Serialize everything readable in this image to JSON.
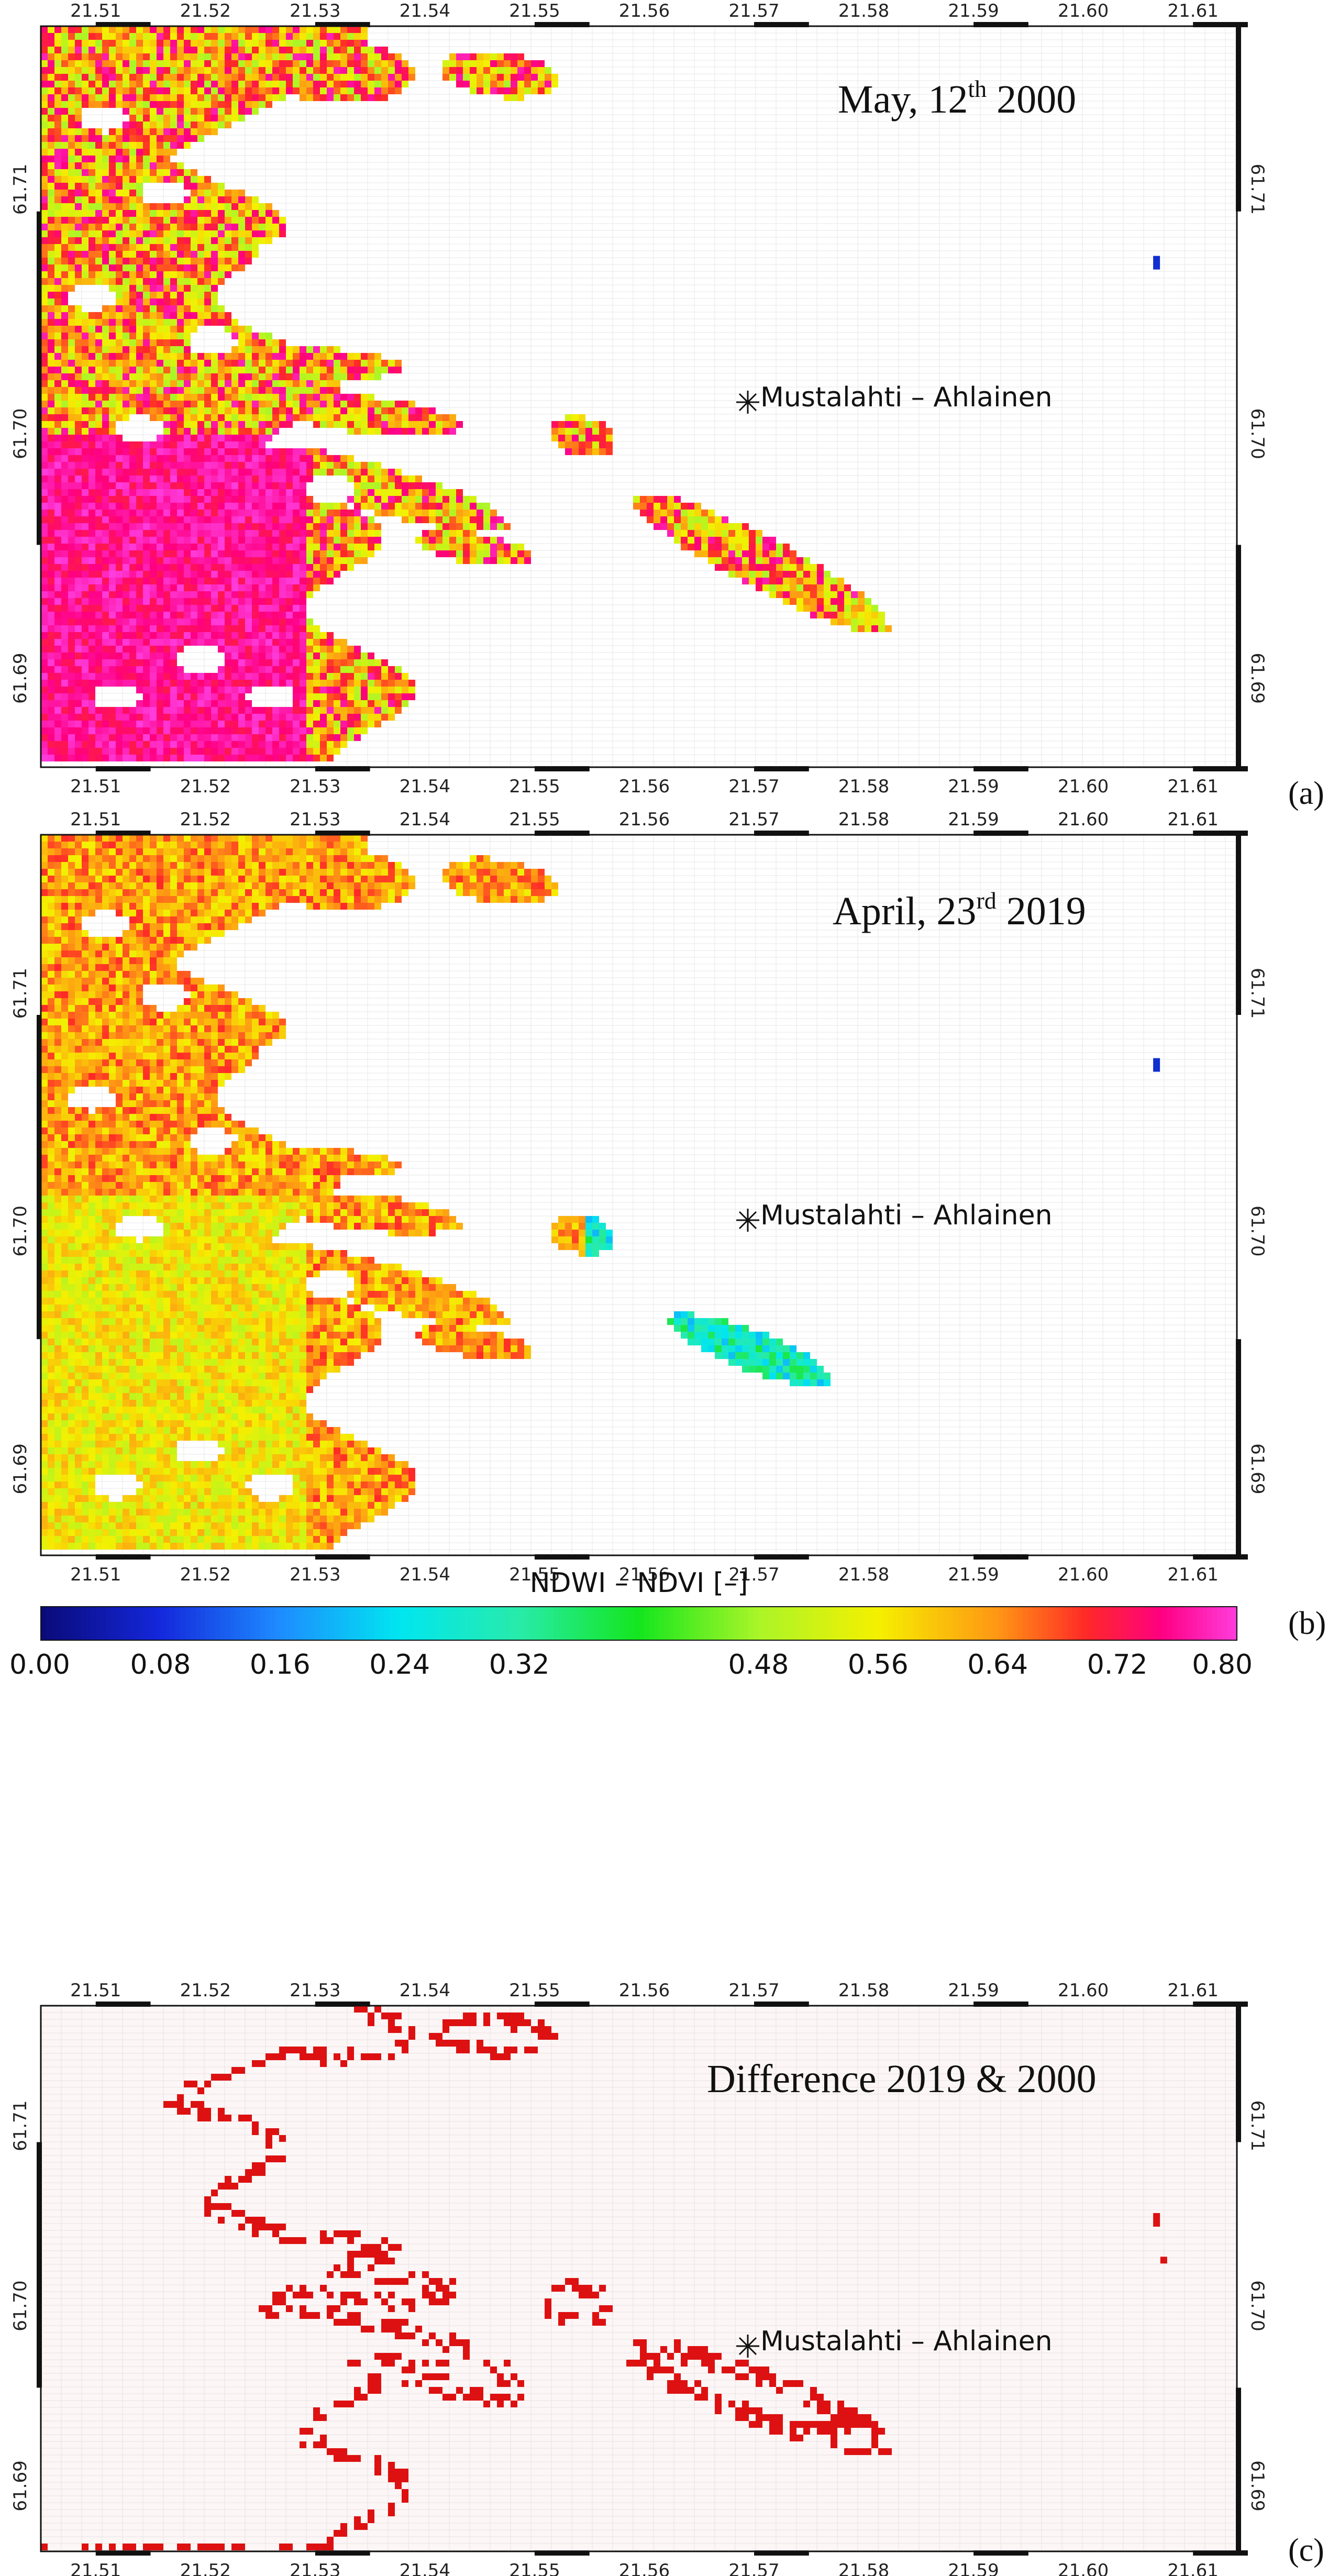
{
  "panels": [
    {
      "id": "a",
      "label": "(a)",
      "title_main": "May, 12",
      "title_sup": "th",
      "title_rest": " 2000",
      "site_label": "Mustalahti – Ahlainen",
      "colormap": "ndwi"
    },
    {
      "id": "b",
      "label": "(b)",
      "title_main": "April, 23",
      "title_sup": "rd",
      "title_rest": " 2019",
      "site_label": "Mustalahti – Ahlainen",
      "colormap": "ndwi"
    },
    {
      "id": "c",
      "label": "(c)",
      "title_main": "Difference 2019 & 2000",
      "title_sup": "",
      "title_rest": "",
      "site_label": "Mustalahti – Ahlainen",
      "colormap": "diff"
    }
  ],
  "lon_ticks": [
    "21.51",
    "21.52",
    "21.53",
    "21.54",
    "21.55",
    "21.56",
    "21.57",
    "21.58",
    "21.59",
    "21.60",
    "21.61"
  ],
  "lat_ticks": [
    "61.71",
    "61.70",
    "61.69"
  ],
  "colorbar": {
    "label": "NDWI – NDVI [–]",
    "ticks": [
      "0.00",
      "0.08",
      "0.16",
      "0.24",
      "0.32",
      "0.48",
      "0.56",
      "0.64",
      "0.72",
      "0.80"
    ],
    "range": [
      0.0,
      0.8
    ]
  },
  "colors": {
    "diff_red": "#dd1111",
    "grid": "#cfcfcf"
  }
}
